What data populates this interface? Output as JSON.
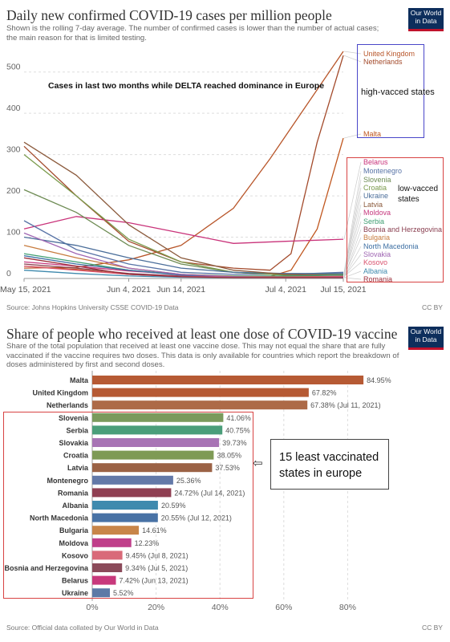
{
  "top": {
    "title": "Daily new confirmed COVID-19 cases per million people",
    "subtitle": "Shown is the rolling 7-day average. The number of confirmed cases is lower than the number of actual cases; the main reason for that is limited testing.",
    "logo_line1": "Our World",
    "logo_line2": "in Data",
    "source": "Source: Johns Hopkins University CSSE COVID-19 Data",
    "license": "CC BY",
    "annotation": "Cases in last two months while DELTA reached dominance in Europe",
    "high_group_label": "high-vacced states",
    "low_group_label_1": "low-vacced",
    "low_group_label_2": "states"
  },
  "bottom": {
    "title": "Share of people who received at least one dose of COVID-19 vaccine",
    "subtitle": "Share of the total population that received at least one vaccine dose. This may not equal the share that are fully vaccinated if the vaccine requires two doses. This data is only available for countries which report the breakdown of doses administered by first and second doses.",
    "logo_line1": "Our World",
    "logo_line2": "in Data",
    "source": "Source: Official data collated by Our World in Data",
    "license": "CC BY",
    "callout_arrow": "⇦",
    "callout_line1": "15 least vaccinated",
    "callout_line2": "states in europe"
  },
  "chart_data": [
    {
      "type": "line",
      "title": "Daily new confirmed COVID-19 cases per million people",
      "x_ticks": [
        "May 15, 2021",
        "Jun 4, 2021",
        "Jun 14, 2021",
        "Jul 4, 2021",
        "Jul 15, 2021"
      ],
      "x_range": [
        "2021-05-15",
        "2021-07-15"
      ],
      "y_ticks": [
        0,
        100,
        200,
        300,
        400,
        500
      ],
      "ylim": [
        0,
        550
      ],
      "grid": "horizontal dashed",
      "legend_placement": "right",
      "series": [
        {
          "name": "United Kingdom",
          "color": "#b8562a",
          "x": [
            "2021-05-15",
            "2021-05-25",
            "2021-06-04",
            "2021-06-14",
            "2021-06-24",
            "2021-07-01",
            "2021-07-08",
            "2021-07-15"
          ],
          "values": [
            25,
            27,
            45,
            80,
            170,
            290,
            420,
            550
          ]
        },
        {
          "name": "Netherlands",
          "color": "#a34a2b",
          "x": [
            "2021-05-15",
            "2021-05-25",
            "2021-06-04",
            "2021-06-14",
            "2021-06-24",
            "2021-07-01",
            "2021-07-05",
            "2021-07-10",
            "2021-07-15"
          ],
          "values": [
            320,
            200,
            90,
            40,
            25,
            20,
            60,
            330,
            540
          ]
        },
        {
          "name": "Malta",
          "color": "#c0571f",
          "x": [
            "2021-05-15",
            "2021-05-25",
            "2021-06-04",
            "2021-06-14",
            "2021-06-24",
            "2021-07-01",
            "2021-07-05",
            "2021-07-10",
            "2021-07-15"
          ],
          "values": [
            30,
            22,
            10,
            5,
            3,
            5,
            20,
            120,
            340
          ]
        },
        {
          "name": "Belarus",
          "color": "#c9337a",
          "x": [
            "2021-05-15",
            "2021-05-25",
            "2021-06-04",
            "2021-06-14",
            "2021-06-24",
            "2021-07-04",
            "2021-07-15"
          ],
          "values": [
            120,
            150,
            135,
            110,
            85,
            90,
            95
          ]
        },
        {
          "name": "Montenegro",
          "color": "#5873a6",
          "x": [
            "2021-05-15",
            "2021-05-25",
            "2021-06-04",
            "2021-06-14",
            "2021-06-24",
            "2021-07-04",
            "2021-07-15"
          ],
          "values": [
            140,
            70,
            35,
            15,
            10,
            10,
            15
          ]
        },
        {
          "name": "Slovenia",
          "color": "#6d8b53",
          "x": [
            "2021-05-15",
            "2021-05-25",
            "2021-06-04",
            "2021-06-14",
            "2021-06-24",
            "2021-07-04",
            "2021-07-15"
          ],
          "values": [
            215,
            160,
            80,
            35,
            15,
            8,
            10
          ]
        },
        {
          "name": "Croatia",
          "color": "#7a9a4c",
          "x": [
            "2021-05-15",
            "2021-05-25",
            "2021-06-04",
            "2021-06-14",
            "2021-06-24",
            "2021-07-04",
            "2021-07-15"
          ],
          "values": [
            300,
            200,
            95,
            40,
            15,
            8,
            10
          ]
        },
        {
          "name": "Ukraine",
          "color": "#4b6e9a",
          "x": [
            "2021-05-15",
            "2021-05-25",
            "2021-06-04",
            "2021-06-14",
            "2021-06-24",
            "2021-07-04",
            "2021-07-15"
          ],
          "values": [
            100,
            80,
            50,
            25,
            15,
            12,
            12
          ]
        },
        {
          "name": "Latvia",
          "color": "#8b5a3c",
          "x": [
            "2021-05-15",
            "2021-05-25",
            "2021-06-04",
            "2021-06-14",
            "2021-06-24",
            "2021-07-04",
            "2021-07-15"
          ],
          "values": [
            330,
            250,
            130,
            50,
            20,
            10,
            8
          ]
        },
        {
          "name": "Moldova",
          "color": "#c6397e",
          "x": [
            "2021-05-15",
            "2021-05-25",
            "2021-06-04",
            "2021-06-14",
            "2021-06-24",
            "2021-07-04",
            "2021-07-15"
          ],
          "values": [
            40,
            30,
            18,
            10,
            5,
            4,
            5
          ]
        },
        {
          "name": "Serbia",
          "color": "#3f9e72",
          "x": [
            "2021-05-15",
            "2021-05-25",
            "2021-06-04",
            "2021-06-14",
            "2021-06-24",
            "2021-07-04",
            "2021-07-15"
          ],
          "values": [
            60,
            40,
            20,
            10,
            6,
            6,
            8
          ]
        },
        {
          "name": "Bosnia and Herzegovina",
          "color": "#883d4e",
          "x": [
            "2021-05-15",
            "2021-05-25",
            "2021-06-04",
            "2021-06-14",
            "2021-06-24",
            "2021-07-04",
            "2021-07-15"
          ],
          "values": [
            35,
            25,
            12,
            6,
            3,
            2,
            2
          ]
        },
        {
          "name": "Bulgaria",
          "color": "#c77c3f",
          "x": [
            "2021-05-15",
            "2021-05-25",
            "2021-06-04",
            "2021-06-14",
            "2021-06-24",
            "2021-07-04",
            "2021-07-15"
          ],
          "values": [
            80,
            50,
            25,
            10,
            5,
            4,
            5
          ]
        },
        {
          "name": "North Macedonia",
          "color": "#3d6fa3",
          "x": [
            "2021-05-15",
            "2021-05-25",
            "2021-06-04",
            "2021-06-14",
            "2021-06-24",
            "2021-07-04",
            "2021-07-15"
          ],
          "values": [
            55,
            35,
            20,
            8,
            4,
            3,
            3
          ]
        },
        {
          "name": "Slovakia",
          "color": "#a067b3",
          "x": [
            "2021-05-15",
            "2021-05-25",
            "2021-06-04",
            "2021-06-14",
            "2021-06-24",
            "2021-07-04",
            "2021-07-15"
          ],
          "values": [
            110,
            60,
            25,
            10,
            4,
            3,
            4
          ]
        },
        {
          "name": "Kosovo",
          "color": "#d9536e",
          "x": [
            "2021-05-15",
            "2021-05-25",
            "2021-06-04",
            "2021-06-14",
            "2021-06-24",
            "2021-07-04",
            "2021-07-15"
          ],
          "values": [
            30,
            20,
            10,
            5,
            3,
            3,
            5
          ]
        },
        {
          "name": "Albania",
          "color": "#3e89ad",
          "x": [
            "2021-05-15",
            "2021-05-25",
            "2021-06-04",
            "2021-06-14",
            "2021-06-24",
            "2021-07-04",
            "2021-07-15"
          ],
          "values": [
            20,
            12,
            6,
            3,
            2,
            2,
            2
          ]
        },
        {
          "name": "Romania",
          "color": "#9b2f3b",
          "x": [
            "2021-05-15",
            "2021-05-25",
            "2021-06-04",
            "2021-06-14",
            "2021-06-24",
            "2021-07-04",
            "2021-07-15"
          ],
          "values": [
            50,
            30,
            10,
            4,
            2,
            2,
            2
          ]
        }
      ]
    },
    {
      "type": "bar",
      "orientation": "horizontal",
      "title": "Share of people who received at least one dose of COVID-19 vaccine",
      "x_ticks": [
        "0%",
        "20%",
        "40%",
        "60%",
        "80%"
      ],
      "xlim": [
        0,
        88
      ],
      "grid": "vertical dashed",
      "categories": [
        "Malta",
        "United Kingdom",
        "Netherlands",
        "Slovenia",
        "Serbia",
        "Slovakia",
        "Croatia",
        "Latvia",
        "Montenegro",
        "Romania",
        "Albania",
        "North Macedonia",
        "Bulgaria",
        "Moldova",
        "Kosovo",
        "Bosnia and Herzegovina",
        "Belarus",
        "Ukraine"
      ],
      "values": [
        84.95,
        67.82,
        67.38,
        41.06,
        40.75,
        39.73,
        38.05,
        37.53,
        25.36,
        24.72,
        20.59,
        20.55,
        14.61,
        12.23,
        9.45,
        9.34,
        7.42,
        5.52
      ],
      "value_labels": [
        "84.95%",
        "67.82%",
        "67.38% (Jul 11, 2021)",
        "41.06%",
        "40.75%",
        "39.73%",
        "38.05%",
        "37.53%",
        "25.36%",
        "24.72% (Jul 14, 2021)",
        "20.59%",
        "20.55% (Jul 12, 2021)",
        "14.61%",
        "12.23%",
        "9.45% (Jul 8, 2021)",
        "9.34% (Jul 5, 2021)",
        "7.42% (Jun 13, 2021)",
        "5.52%"
      ],
      "colors": [
        "#b65a34",
        "#b65a34",
        "#ad6a47",
        "#7a9a5c",
        "#4a9e7a",
        "#a874b5",
        "#7e9a55",
        "#9b6245",
        "#6379a8",
        "#8f3f52",
        "#3f8aae",
        "#4872a5",
        "#c88549",
        "#c03f8a",
        "#d96a79",
        "#8b4a5a",
        "#c8397c",
        "#5c7aa6"
      ]
    }
  ]
}
